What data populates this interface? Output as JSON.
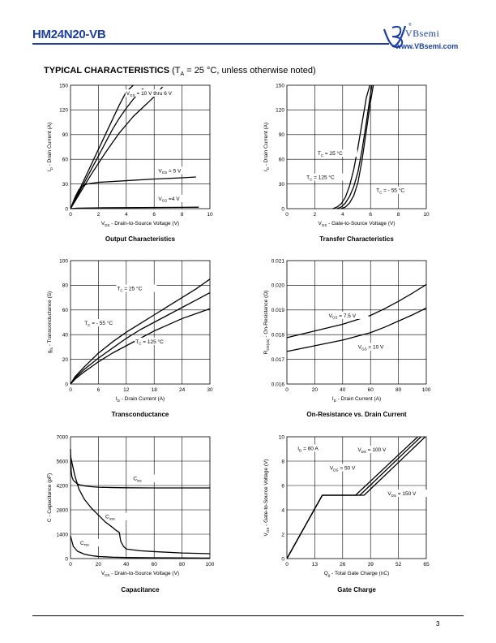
{
  "header": {
    "part_number": "HM24N20-VB",
    "brand": "VBsemi",
    "website": "www.VBsemi.com",
    "registered_mark": "®"
  },
  "section": {
    "title": "TYPICAL CHARACTERISTICS",
    "condition_prefix": "(T",
    "condition_sub": "A",
    "condition_suffix": " = 25 °C, unless otherwise noted)"
  },
  "footer": {
    "page_number": "3"
  },
  "chart_data": [
    {
      "type": "line",
      "title": "Output Characteristics",
      "xlabel_main": "V",
      "xlabel_sub": "DS",
      "xlabel_rest": " - Drain-to-Source Voltage (V)",
      "ylabel_main": "I",
      "ylabel_sub": "D",
      "ylabel_rest": " - Drain Current (A)",
      "xlim": [
        0,
        10
      ],
      "ylim": [
        0,
        150
      ],
      "xticks": [
        "0",
        "2",
        "4",
        "6",
        "8",
        "10"
      ],
      "yticks": [
        "0",
        "30",
        "60",
        "90",
        "120",
        "150"
      ],
      "grid": true,
      "series": [
        {
          "x": [
            0,
            0.5,
            1,
            1.5,
            2,
            2.5,
            3,
            3.5,
            4,
            4.5
          ],
          "y": [
            0,
            18,
            36,
            54,
            72,
            90,
            108,
            126,
            142,
            150
          ]
        },
        {
          "x": [
            0,
            0.5,
            1,
            1.5,
            2,
            2.5,
            3,
            3.5,
            4,
            4.5,
            5,
            5.2
          ],
          "y": [
            0,
            16,
            32,
            48,
            64,
            80,
            96,
            110,
            122,
            133,
            142,
            146
          ]
        },
        {
          "x": [
            0,
            0.5,
            1,
            1.5,
            2,
            2.5,
            3,
            3.5,
            4,
            4.5,
            5,
            5.5,
            6,
            6.6
          ],
          "y": [
            0,
            14,
            28,
            42,
            55,
            68,
            80,
            92,
            102,
            112,
            120,
            128,
            136,
            148
          ]
        },
        {
          "x": [
            0,
            0.3,
            0.6,
            0.9,
            1.2,
            2,
            4,
            6,
            8,
            9.0
          ],
          "y": [
            0,
            13,
            23,
            28,
            30,
            32,
            34,
            36,
            37.5,
            38.5
          ]
        },
        {
          "x": [
            0,
            0.5,
            2,
            5,
            8,
            9.2
          ],
          "y": [
            0,
            0.6,
            1.0,
            1.3,
            1.6,
            1.8
          ]
        }
      ],
      "annotations": [
        {
          "main": "V",
          "sub": "GS",
          "rest": " = 10 V thru 6 V",
          "x": 4.0,
          "y": 138
        },
        {
          "main": "V",
          "sub": "GS",
          "rest": " = 5 V",
          "x": 6.3,
          "y": 44
        },
        {
          "main": "V",
          "sub": "GS",
          "rest": " =4 V",
          "x": 6.3,
          "y": 10
        }
      ]
    },
    {
      "type": "line",
      "title": "Transfer Characteristics",
      "xlabel_main": "V",
      "xlabel_sub": "GS",
      "xlabel_rest": " - Gate-to-Source Voltage (V)",
      "ylabel_main": "I",
      "ylabel_sub": "D",
      "ylabel_rest": " - Drain Current (A)",
      "xlim": [
        0,
        10
      ],
      "ylim": [
        0,
        150
      ],
      "xticks": [
        "0",
        "2",
        "4",
        "6",
        "8",
        "10"
      ],
      "yticks": [
        "0",
        "30",
        "60",
        "90",
        "120",
        "150"
      ],
      "grid": true,
      "series": [
        {
          "x": [
            3.6,
            3.9,
            4.2,
            4.5,
            4.8,
            5.1,
            5.4,
            5.7,
            6.0,
            6.1
          ],
          "y": [
            0,
            2,
            7,
            15,
            27,
            45,
            72,
            105,
            140,
            150
          ]
        },
        {
          "x": [
            3.3,
            3.6,
            3.9,
            4.2,
            4.5,
            4.8,
            5.1,
            5.4,
            5.7,
            5.95
          ],
          "y": [
            0,
            2,
            6,
            14,
            28,
            48,
            75,
            105,
            135,
            150
          ]
        },
        {
          "x": [
            3.9,
            4.2,
            4.5,
            4.8,
            5.1,
            5.4,
            5.7,
            6.0,
            6.2
          ],
          "y": [
            0,
            2,
            7,
            16,
            32,
            60,
            95,
            130,
            150
          ]
        }
      ],
      "annotations": [
        {
          "main": "T",
          "sub": "C",
          "rest": " = 25 °C",
          "x": 2.2,
          "y": 65
        },
        {
          "main": "T",
          "sub": "C",
          "rest": " = 125 °C",
          "x": 1.4,
          "y": 36
        },
        {
          "main": "T",
          "sub": "C",
          "rest": " = - 55 °C",
          "x": 6.4,
          "y": 20
        }
      ]
    },
    {
      "type": "line",
      "title": "Transconductance",
      "xlabel_main": "I",
      "xlabel_sub": "D",
      "xlabel_rest": " - Drain Current (A)",
      "ylabel_main": "g",
      "ylabel_sub": "fs",
      "ylabel_rest": " - Transconductance (S)",
      "xlim": [
        0,
        30
      ],
      "ylim": [
        0,
        100
      ],
      "xticks": [
        "0",
        "6",
        "12",
        "18",
        "24",
        "30"
      ],
      "yticks": [
        "0",
        "20",
        "40",
        "60",
        "80",
        "100"
      ],
      "grid": true,
      "series": [
        {
          "x": [
            0,
            1,
            3,
            6,
            9,
            12,
            15,
            18,
            21,
            24,
            27,
            30
          ],
          "y": [
            0,
            6,
            14,
            25,
            34,
            42,
            49,
            56,
            63,
            70,
            77,
            85
          ]
        },
        {
          "x": [
            0,
            1,
            3,
            6,
            9,
            12,
            15,
            18,
            21,
            24,
            27,
            30
          ],
          "y": [
            0,
            5,
            12,
            21,
            29,
            37,
            44,
            50,
            56,
            62,
            68,
            74
          ]
        },
        {
          "x": [
            0,
            1,
            3,
            6,
            9,
            12,
            15,
            18,
            21,
            24,
            27,
            30
          ],
          "y": [
            0,
            4,
            10,
            18,
            25,
            31,
            37,
            43,
            48,
            53,
            57,
            61
          ]
        }
      ],
      "annotations": [
        {
          "main": "T",
          "sub": "C",
          "rest": " = 25 °C",
          "x": 10.0,
          "y": 76
        },
        {
          "main": "T",
          "sub": "C",
          "rest": " = - 55 °C",
          "x": 3.0,
          "y": 48
        },
        {
          "main": "T",
          "sub": "C",
          "rest": " = 125 °C",
          "x": 14.0,
          "y": 33
        }
      ]
    },
    {
      "type": "line",
      "title": "On-Resistance vs. Drain Current",
      "xlabel_main": "I",
      "xlabel_sub": "D",
      "xlabel_rest": " - Drain Current (A)",
      "ylabel_main": "R",
      "ylabel_sub": "DS(on)",
      "ylabel_rest": " - On-Resistance (Ω)",
      "xlim": [
        0,
        100
      ],
      "ylim": [
        0.016,
        0.021
      ],
      "xticks": [
        "0",
        "20",
        "40",
        "60",
        "80",
        "100"
      ],
      "yticks": [
        "0.016",
        "0.017",
        "0.018",
        "0.019",
        "0.020",
        "0.021"
      ],
      "grid": true,
      "series": [
        {
          "x": [
            0,
            20,
            40,
            60,
            70,
            80,
            90,
            100
          ],
          "y": [
            0.01788,
            0.01815,
            0.01842,
            0.01878,
            0.01905,
            0.01935,
            0.01968,
            0.02003
          ]
        },
        {
          "x": [
            0,
            20,
            40,
            60,
            70,
            80,
            90,
            100
          ],
          "y": [
            0.01732,
            0.01755,
            0.01778,
            0.01808,
            0.0183,
            0.01855,
            0.0188,
            0.01908
          ]
        }
      ],
      "annotations": [
        {
          "main": "V",
          "sub": "GS",
          "rest": " = 7.5 V",
          "x": 30,
          "y": 0.0187
        },
        {
          "main": "V",
          "sub": "GS",
          "rest": " = 10 V",
          "x": 51,
          "y": 0.01743
        }
      ]
    },
    {
      "type": "line",
      "title": "Capacitance",
      "xlabel_main": "V",
      "xlabel_sub": "DS",
      "xlabel_rest": " - Drain-to-Source Voltage (V)",
      "ylabel_main": "C",
      "ylabel_sub": "",
      "ylabel_rest": " - Capacitance (pF)",
      "xlim": [
        0,
        100
      ],
      "ylim": [
        0,
        7000
      ],
      "xticks": [
        "0",
        "20",
        "40",
        "60",
        "80",
        "100"
      ],
      "yticks": [
        "0",
        "1400",
        "2800",
        "4200",
        "5600",
        "7000"
      ],
      "grid": true,
      "series": [
        {
          "x": [
            0,
            0.5,
            1,
            2,
            4,
            6,
            10,
            15,
            20,
            30,
            40,
            60,
            80,
            100
          ],
          "y": [
            6300,
            5000,
            4700,
            4500,
            4350,
            4250,
            4180,
            4130,
            4100,
            4080,
            4070,
            4060,
            4060,
            4060
          ]
        },
        {
          "x": [
            0,
            3,
            6,
            10,
            15,
            20,
            25,
            30,
            33,
            35,
            36,
            38,
            40,
            50,
            60,
            80,
            100
          ],
          "y": [
            5900,
            4800,
            4000,
            3400,
            2900,
            2500,
            2100,
            1800,
            1600,
            1500,
            1000,
            700,
            550,
            450,
            400,
            320,
            280
          ]
        },
        {
          "x": [
            0,
            2,
            5,
            10,
            15,
            20,
            30,
            40,
            60,
            80,
            100
          ],
          "y": [
            1300,
            700,
            420,
            250,
            170,
            120,
            80,
            60,
            45,
            38,
            30
          ]
        }
      ],
      "annotations": [
        {
          "main": "C",
          "sub": "iss",
          "rest": "",
          "x": 45,
          "y": 4500
        },
        {
          "main": "C",
          "sub": "oss",
          "rest": "",
          "x": 25,
          "y": 2300
        },
        {
          "main": "C",
          "sub": "rss",
          "rest": "",
          "x": 7,
          "y": 800
        }
      ]
    },
    {
      "type": "line",
      "title": "Gate Charge",
      "xlabel_main": "Q",
      "xlabel_sub": "g",
      "xlabel_rest": " - Total Gate Charge (nC)",
      "ylabel_main": "V",
      "ylabel_sub": "GS",
      "ylabel_rest": " - Gate-to-Source Voltage (V)",
      "xlim": [
        0,
        65
      ],
      "ylim": [
        0,
        10
      ],
      "xticks": [
        "0",
        "13",
        "26",
        "39",
        "52",
        "65"
      ],
      "yticks": [
        "0",
        "2",
        "4",
        "6",
        "8",
        "10"
      ],
      "grid": true,
      "series": [
        {
          "x": [
            0,
            16.5,
            32,
            61
          ],
          "y": [
            0,
            5.2,
            5.2,
            10
          ]
        },
        {
          "x": [
            0,
            16.5,
            34,
            62.5
          ],
          "y": [
            0,
            5.2,
            5.2,
            10
          ]
        },
        {
          "x": [
            0,
            16.5,
            36,
            64.5
          ],
          "y": [
            0,
            5.2,
            5.2,
            10
          ]
        }
      ],
      "annotations": [
        {
          "main": "I",
          "sub": "D",
          "rest": " = 60 A",
          "x": 5,
          "y": 8.9
        },
        {
          "main": "V",
          "sub": "DS",
          "rest": " = 100 V",
          "x": 33,
          "y": 8.8
        },
        {
          "main": "V",
          "sub": "DS",
          "rest": " = 50 V",
          "x": 20,
          "y": 7.3
        },
        {
          "main": "V",
          "sub": "DS",
          "rest": " = 150 V",
          "x": 47,
          "y": 5.2
        }
      ]
    }
  ]
}
